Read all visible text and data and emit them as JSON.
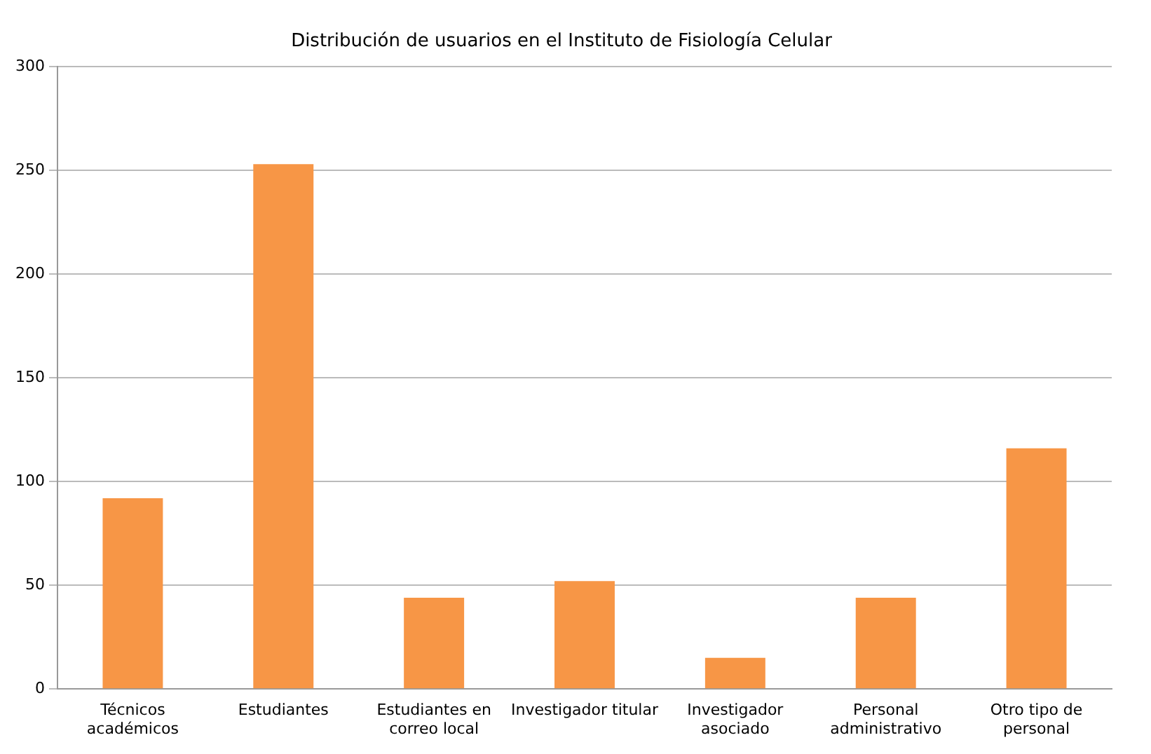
{
  "chart_data": {
    "type": "bar",
    "title": "Distribución de usuarios en el Instituto de Fisiología Celular",
    "categories": [
      [
        "Técnicos",
        "académicos"
      ],
      [
        "Estudiantes"
      ],
      [
        "Estudiantes en",
        "correo local"
      ],
      [
        "Investigador titular"
      ],
      [
        "Investigador",
        "asociado"
      ],
      [
        "Personal",
        "administrativo"
      ],
      [
        "Otro tipo de",
        "personal"
      ]
    ],
    "values": [
      92,
      253,
      44,
      52,
      15,
      44,
      116
    ],
    "color": "#f79646",
    "ylim": [
      0,
      300
    ],
    "yticks": [
      0,
      50,
      100,
      150,
      200,
      250,
      300
    ],
    "grid": "y"
  }
}
